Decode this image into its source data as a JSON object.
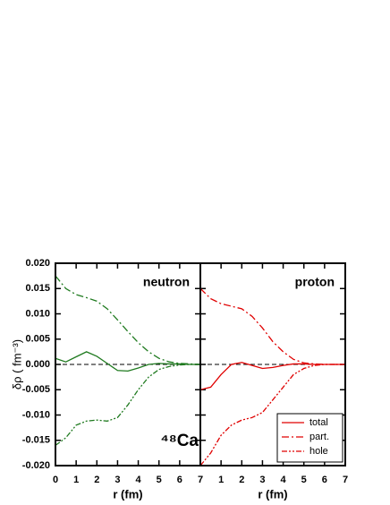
{
  "chart_data": [
    {
      "type": "line",
      "label": "neutron",
      "nucleus": "⁴⁸Ca",
      "ylabel": "δρ ( fm⁻³)",
      "xlabel": "r (fm)",
      "xlim": [
        0,
        7
      ],
      "ylim": [
        -0.02,
        0.02
      ],
      "xticks": [
        0,
        1,
        2,
        3,
        4,
        5,
        6,
        7
      ],
      "yticks": [
        {
          "value": -0.02,
          "label": "-0.020"
        },
        {
          "value": -0.015,
          "label": "-0.015"
        },
        {
          "value": -0.01,
          "label": "-0.010"
        },
        {
          "value": -0.005,
          "label": "-0.005"
        },
        {
          "value": 0,
          "label": "0.000"
        },
        {
          "value": 0.005,
          "label": "0.005"
        },
        {
          "value": 0.01,
          "label": "0.010"
        },
        {
          "value": 0.015,
          "label": "0.015"
        },
        {
          "value": 0.02,
          "label": "0.020"
        }
      ],
      "zero_line": true,
      "x": [
        0,
        0.5,
        1,
        1.5,
        2,
        2.5,
        3,
        3.5,
        4,
        4.5,
        5,
        5.5,
        6,
        6.5,
        7
      ],
      "series": [
        {
          "color": "#1f7a1f",
          "dash": "solid",
          "values": [
            0.0012,
            0.0005,
            0.0015,
            0.0025,
            0.0016,
            0.0002,
            -0.0012,
            -0.0013,
            -0.0007,
            0,
            0.0002,
            0.0001,
            0.0001,
            0,
            0
          ]
        },
        {
          "color": "#1f7a1f",
          "dash": "dashdot",
          "values": [
            0.0175,
            0.015,
            0.0138,
            0.0132,
            0.0125,
            0.011,
            0.0088,
            0.0065,
            0.0043,
            0.0025,
            0.0012,
            0.0005,
            0.0002,
            0.0001,
            0
          ]
        },
        {
          "color": "#1f7a1f",
          "dash": "dashdotdot",
          "values": [
            -0.016,
            -0.0145,
            -0.012,
            -0.0112,
            -0.011,
            -0.0112,
            -0.0105,
            -0.008,
            -0.005,
            -0.0025,
            -0.001,
            -0.0004,
            -0.0001,
            0,
            0
          ]
        }
      ]
    },
    {
      "type": "line",
      "label": "proton",
      "xlabel": "r (fm)",
      "xlim": [
        0,
        7
      ],
      "ylim": [
        -0.02,
        0.02
      ],
      "xticks": [
        1,
        2,
        3,
        4,
        5,
        6,
        7
      ],
      "yticks": [
        -0.02,
        -0.015,
        -0.01,
        -0.005,
        0,
        0.005,
        0.01,
        0.015,
        0.02
      ],
      "zero_line": true,
      "legend": "lower right",
      "x": [
        0,
        0.5,
        1,
        1.5,
        2,
        2.5,
        3,
        3.5,
        4,
        4.5,
        5,
        5.5,
        6,
        6.5,
        7
      ],
      "series": [
        {
          "name": "total",
          "color": "#e00000",
          "dash": "solid",
          "values": [
            -0.005,
            -0.0045,
            -0.002,
            0,
            0.0004,
            -0.0002,
            -0.0008,
            -0.0006,
            -0.0002,
            0.0001,
            0.0001,
            0,
            0,
            0,
            0
          ]
        },
        {
          "name": "part.",
          "color": "#e00000",
          "dash": "dashdot",
          "values": [
            0.015,
            0.013,
            0.012,
            0.0115,
            0.011,
            0.0095,
            0.0072,
            0.0045,
            0.0025,
            0.001,
            0.0003,
            0.0001,
            0,
            0,
            0
          ]
        },
        {
          "name": "hole",
          "color": "#e00000",
          "dash": "dashdotdot",
          "values": [
            -0.02,
            -0.0175,
            -0.014,
            -0.012,
            -0.011,
            -0.0105,
            -0.0095,
            -0.007,
            -0.0045,
            -0.002,
            -0.0008,
            -0.0002,
            0,
            0,
            0
          ]
        }
      ]
    }
  ]
}
